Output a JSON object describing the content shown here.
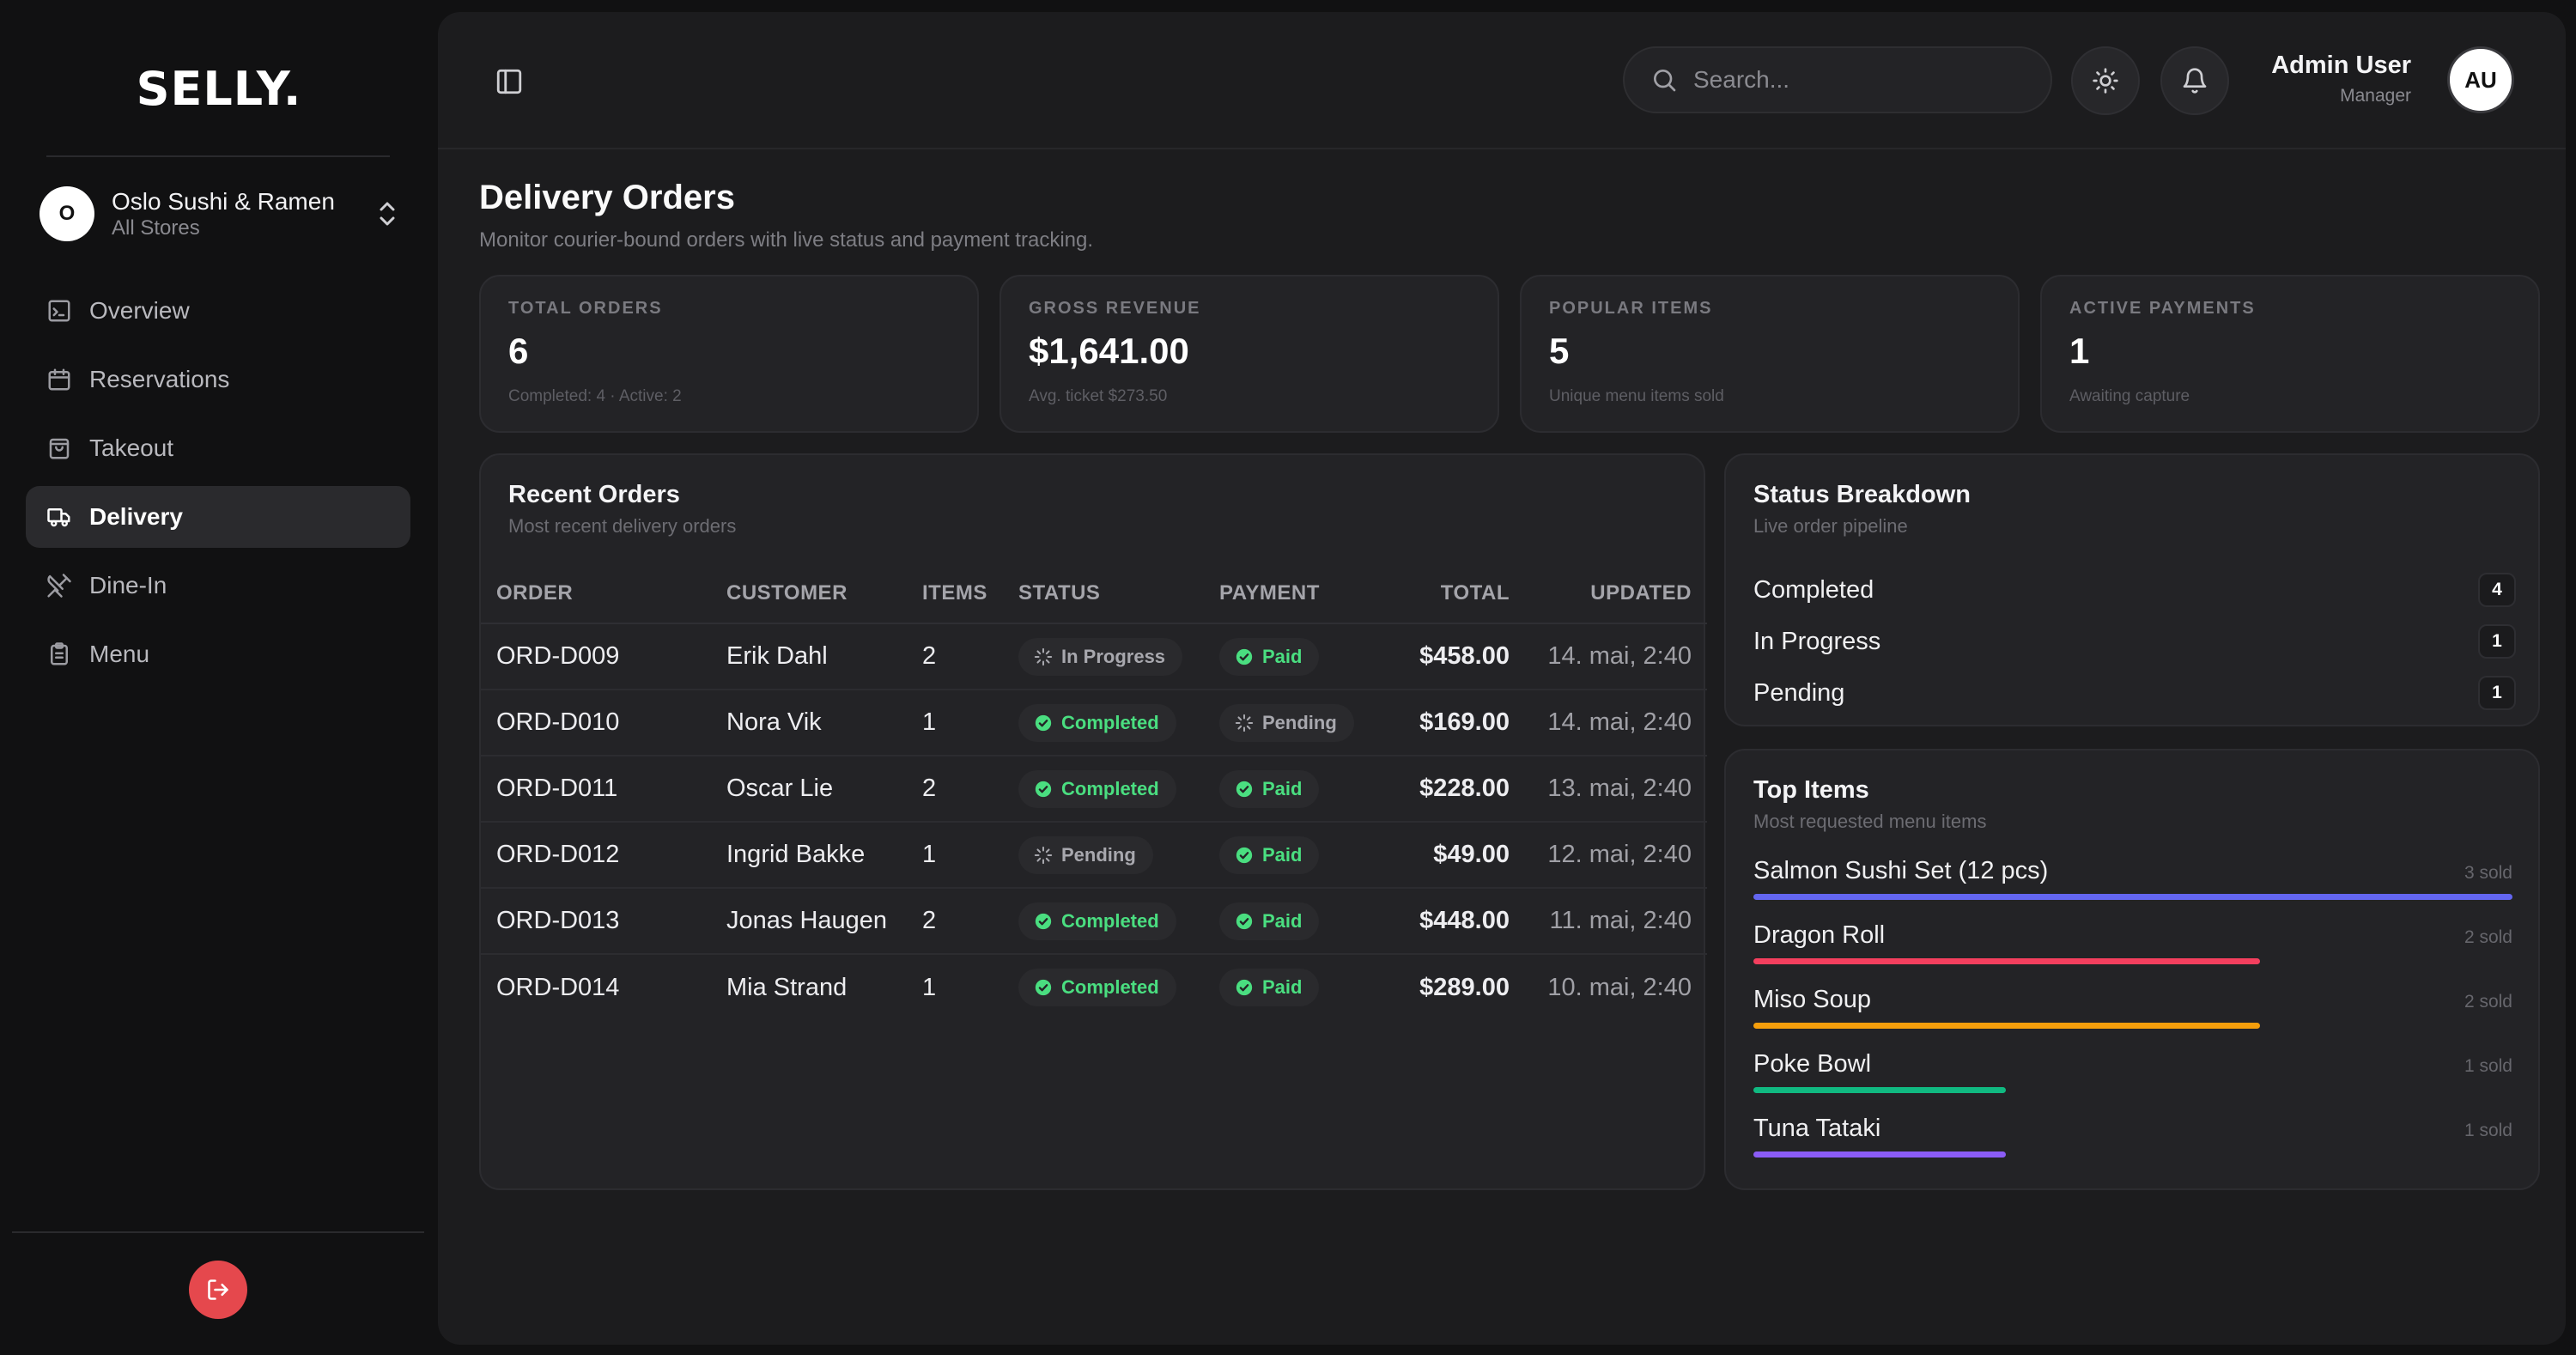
{
  "brand": {
    "logo": "SELLY."
  },
  "store": {
    "initial": "O",
    "name": "Oslo Sushi & Ramen",
    "sub": "All Stores"
  },
  "nav": {
    "items": [
      {
        "label": "Overview",
        "icon": "terminal-square-icon",
        "active": false
      },
      {
        "label": "Reservations",
        "icon": "calendar-icon",
        "active": false
      },
      {
        "label": "Takeout",
        "icon": "shopping-bag-icon",
        "active": false
      },
      {
        "label": "Delivery",
        "icon": "truck-icon",
        "active": true
      },
      {
        "label": "Dine-In",
        "icon": "utensils-crossed-icon",
        "active": false
      },
      {
        "label": "Menu",
        "icon": "clipboard-list-icon",
        "active": false
      }
    ]
  },
  "header": {
    "search_placeholder": "Search...",
    "user_name": "Admin User",
    "user_role": "Manager",
    "user_initials": "AU"
  },
  "page": {
    "title": "Delivery Orders",
    "subtitle": "Monitor courier-bound orders with live status and payment tracking."
  },
  "stats": [
    {
      "label": "TOTAL ORDERS",
      "value": "6",
      "note": "Completed: 4 · Active: 2"
    },
    {
      "label": "GROSS REVENUE",
      "value": "$1,641.00",
      "note": "Avg. ticket $273.50"
    },
    {
      "label": "POPULAR ITEMS",
      "value": "5",
      "note": "Unique menu items sold"
    },
    {
      "label": "ACTIVE PAYMENTS",
      "value": "1",
      "note": "Awaiting capture"
    }
  ],
  "orders": {
    "title": "Recent Orders",
    "subtitle": "Most recent delivery orders",
    "columns": [
      "ORDER",
      "CUSTOMER",
      "ITEMS",
      "STATUS",
      "PAYMENT",
      "TOTAL",
      "UPDATED"
    ],
    "rows": [
      {
        "order": "ORD-D009",
        "customer": "Erik Dahl",
        "items": "2",
        "status": "In Progress",
        "payment": "Paid",
        "total": "$458.00",
        "updated": "14. mai, 2:40"
      },
      {
        "order": "ORD-D010",
        "customer": "Nora Vik",
        "items": "1",
        "status": "Completed",
        "payment": "Pending",
        "total": "$169.00",
        "updated": "14. mai, 2:40"
      },
      {
        "order": "ORD-D011",
        "customer": "Oscar Lie",
        "items": "2",
        "status": "Completed",
        "payment": "Paid",
        "total": "$228.00",
        "updated": "13. mai, 2:40"
      },
      {
        "order": "ORD-D012",
        "customer": "Ingrid Bakke",
        "items": "1",
        "status": "Pending",
        "payment": "Paid",
        "total": "$49.00",
        "updated": "12. mai, 2:40"
      },
      {
        "order": "ORD-D013",
        "customer": "Jonas Haugen",
        "items": "2",
        "status": "Completed",
        "payment": "Paid",
        "total": "$448.00",
        "updated": "11. mai, 2:40"
      },
      {
        "order": "ORD-D014",
        "customer": "Mia Strand",
        "items": "1",
        "status": "Completed",
        "payment": "Paid",
        "total": "$289.00",
        "updated": "10. mai, 2:40"
      }
    ]
  },
  "status_breakdown": {
    "title": "Status Breakdown",
    "subtitle": "Live order pipeline",
    "rows": [
      {
        "label": "Completed",
        "count": "4"
      },
      {
        "label": "In Progress",
        "count": "1"
      },
      {
        "label": "Pending",
        "count": "1"
      }
    ]
  },
  "top_items": {
    "title": "Top Items",
    "subtitle": "Most requested menu items",
    "items": [
      {
        "name": "Salmon Sushi Set (12 pcs)",
        "sold": "3 sold",
        "fraction": 1.0,
        "color": "#6366f1"
      },
      {
        "name": "Dragon Roll",
        "sold": "2 sold",
        "fraction": 0.667,
        "color": "#f43f5e"
      },
      {
        "name": "Miso Soup",
        "sold": "2 sold",
        "fraction": 0.667,
        "color": "#f59e0b"
      },
      {
        "name": "Poke Bowl",
        "sold": "1 sold",
        "fraction": 0.333,
        "color": "#10b981"
      },
      {
        "name": "Tuna Tataki",
        "sold": "1 sold",
        "fraction": 0.333,
        "color": "#8b5cf6"
      }
    ]
  },
  "colors": {
    "accent_green": "#4ade80",
    "logout_red": "#e5484d",
    "background": "#111112",
    "panel": "#1c1c1e"
  }
}
